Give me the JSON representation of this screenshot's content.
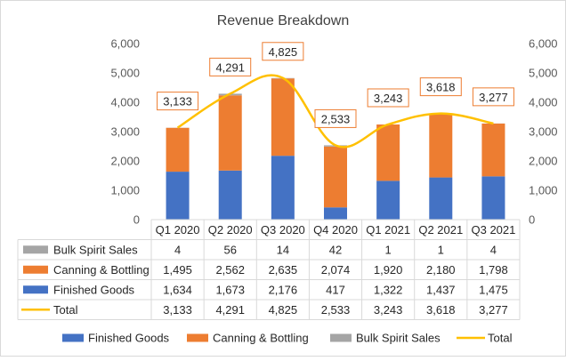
{
  "chart_data": {
    "type": "bar",
    "title": "Revenue Breakdown",
    "categories": [
      "Q1 2020",
      "Q2 2020",
      "Q3 2020",
      "Q4 2020",
      "Q1 2021",
      "Q2 2021",
      "Q3 2021"
    ],
    "stacked": true,
    "series": [
      {
        "name": "Finished Goods",
        "type": "bar",
        "color": "#4472C4",
        "values": [
          1634,
          1673,
          2176,
          417,
          1322,
          1437,
          1475
        ]
      },
      {
        "name": "Canning & Bottling",
        "type": "bar",
        "color": "#ED7D31",
        "values": [
          1495,
          2562,
          2635,
          2074,
          1920,
          2180,
          1798
        ]
      },
      {
        "name": "Bulk Spirit Sales",
        "type": "bar",
        "color": "#A5A5A5",
        "values": [
          4,
          56,
          14,
          42,
          1,
          1,
          4
        ]
      },
      {
        "name": "Total",
        "type": "line",
        "color": "#FFC000",
        "values": [
          3133,
          4291,
          4825,
          2533,
          3243,
          3618,
          3277
        ]
      }
    ],
    "data_labels": [
      "3,133",
      "4,291",
      "4,825",
      "2,533",
      "3,243",
      "3,618",
      "3,277"
    ],
    "ylim": [
      0,
      6000
    ],
    "y_ticks": [
      "0",
      "1,000",
      "2,000",
      "3,000",
      "4,000",
      "5,000",
      "6,000"
    ],
    "secondary_ylim": [
      0,
      6000
    ],
    "secondary_y_ticks": [
      "0",
      "1,000",
      "2,000",
      "3,000",
      "4,000",
      "5,000",
      "6,000"
    ],
    "data_table": {
      "rows": [
        {
          "name": "Bulk Spirit Sales",
          "values": [
            "4",
            "56",
            "14",
            "42",
            "1",
            "1",
            "4"
          ]
        },
        {
          "name": "Canning & Bottling",
          "values": [
            "1,495",
            "2,562",
            "2,635",
            "2,074",
            "1,920",
            "2,180",
            "1,798"
          ]
        },
        {
          "name": "Finished Goods",
          "values": [
            "1,634",
            "1,673",
            "2,176",
            "417",
            "1,322",
            "1,437",
            "1,475"
          ]
        },
        {
          "name": "Total",
          "values": [
            "3,133",
            "4,291",
            "4,825",
            "2,533",
            "3,243",
            "3,618",
            "3,277"
          ]
        }
      ]
    },
    "legend": {
      "position": "bottom",
      "entries": [
        "Finished Goods",
        "Canning & Bottling",
        "Bulk Spirit Sales",
        "Total"
      ]
    },
    "grid": false
  }
}
